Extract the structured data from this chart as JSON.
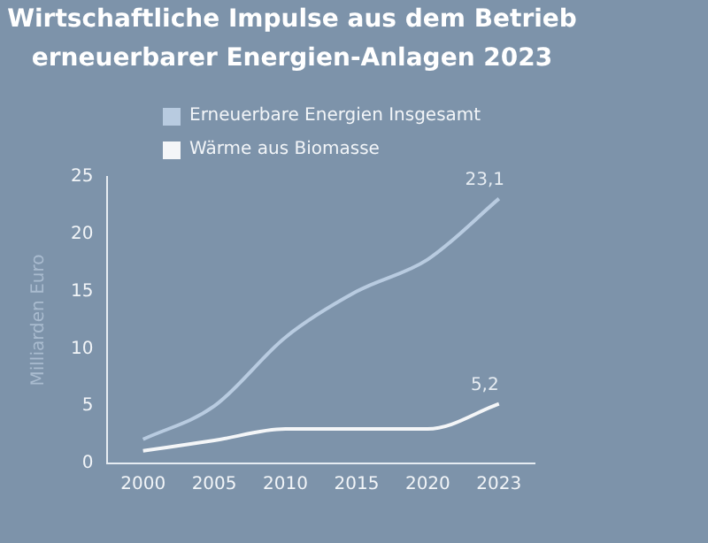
{
  "chart_data": {
    "type": "line",
    "title": "Wirtschaftliche Impulse aus dem Betrieb erneuerbarer Energien-Anlagen 2023",
    "ylabel": "Milliarden Euro",
    "categories": [
      "2000",
      "2005",
      "2010",
      "2015",
      "2020",
      "2023"
    ],
    "series": [
      {
        "name": "Erneuerbare Energien Insgesamt",
        "color": "#b8cbe0",
        "values": [
          2.1,
          5,
          11,
          15,
          17.8,
          23.1
        ],
        "value_labels": [
          null,
          null,
          null,
          null,
          null,
          "23,1"
        ]
      },
      {
        "name": "Wärme aus Biomasse",
        "color": "#f4f6f8",
        "values": [
          1.1,
          2,
          3,
          3,
          3,
          5.2
        ],
        "value_labels": [
          null,
          null,
          null,
          null,
          null,
          "5,2"
        ]
      }
    ],
    "ylim": [
      0,
      25
    ],
    "yticks": [
      0,
      5,
      10,
      15,
      20,
      25
    ],
    "grid": false,
    "legend": "top",
    "marker": "none",
    "line_style": "solid"
  }
}
